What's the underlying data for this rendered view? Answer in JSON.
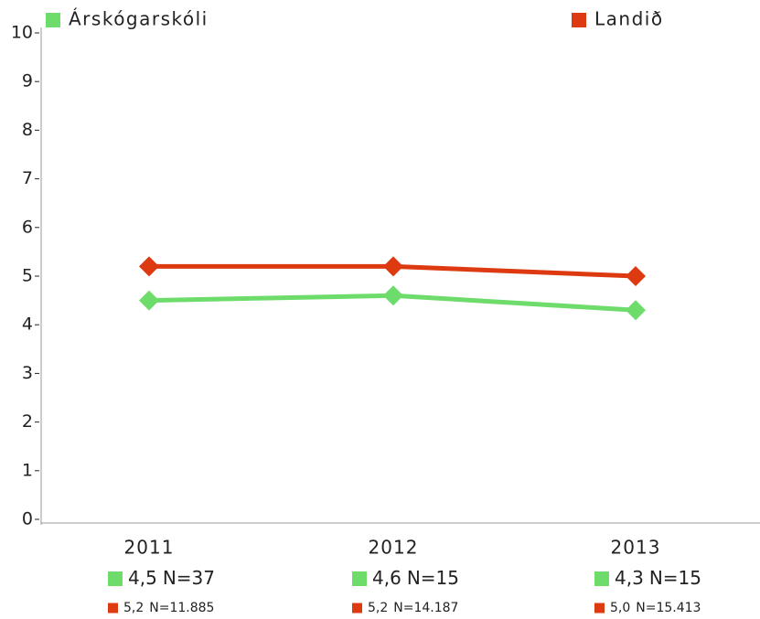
{
  "chart_data": {
    "type": "line",
    "categories": [
      "2011",
      "2012",
      "2013"
    ],
    "series": [
      {
        "name": "Árskógarskóli",
        "color": "#6ddc6a",
        "values": [
          4.5,
          4.6,
          4.3
        ],
        "value_labels": [
          "4,5",
          "4,6",
          "4,3"
        ],
        "n_labels": [
          "N=37",
          "N=15",
          "N=15"
        ]
      },
      {
        "name": "Landið",
        "color": "#dd3a12",
        "values": [
          5.2,
          5.2,
          5.0
        ],
        "value_labels": [
          "5,2",
          "5,2",
          "5,0"
        ],
        "n_labels": [
          "N=11.885",
          "N=14.187",
          "N=15.413"
        ]
      }
    ],
    "ylim": [
      0,
      10
    ],
    "yticks": [
      0,
      1,
      2,
      3,
      4,
      5,
      6,
      7,
      8,
      9,
      10
    ],
    "legend": "top",
    "grid": false
  }
}
